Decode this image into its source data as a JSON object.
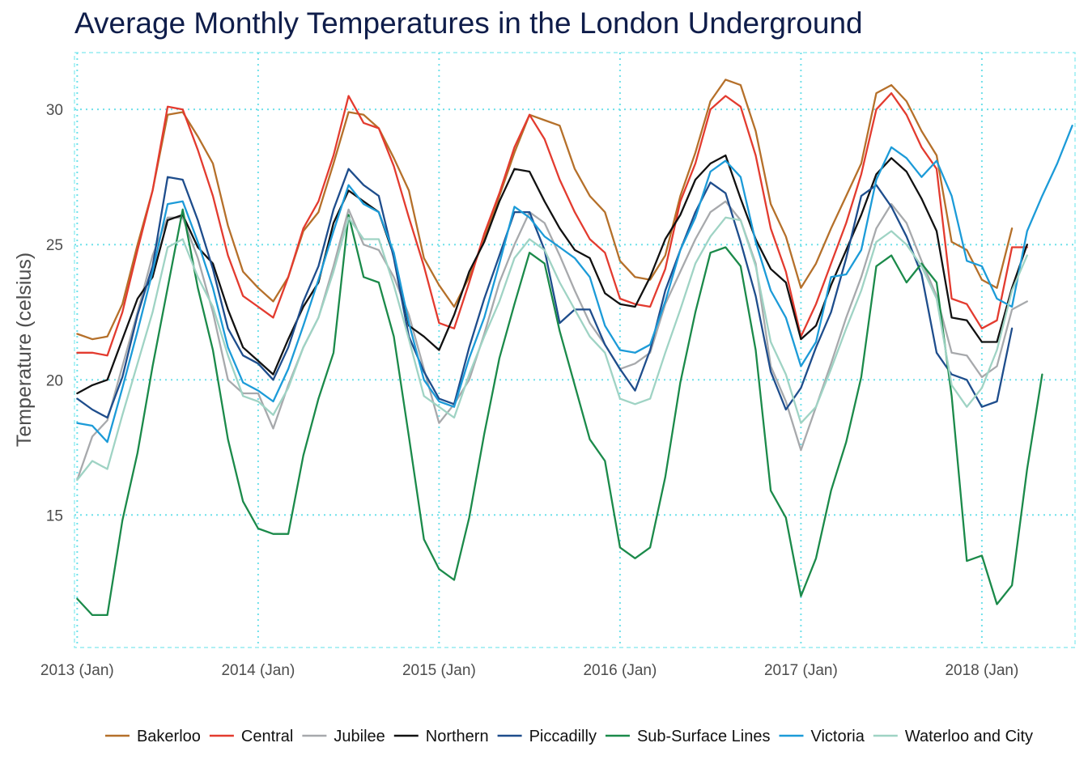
{
  "chart_data": {
    "type": "line",
    "title": "Average Monthly Temperatures in the London Underground",
    "xlabel": "",
    "ylabel": "Temperature (celsius)",
    "x_range": [
      "2013-01",
      "2018-07"
    ],
    "ylim": [
      10.1,
      32.1
    ],
    "x_ticks": [
      {
        "date": "2013-01",
        "label": "2013 (Jan)"
      },
      {
        "date": "2014-01",
        "label": "2014 (Jan)"
      },
      {
        "date": "2015-01",
        "label": "2015 (Jan)"
      },
      {
        "date": "2016-01",
        "label": "2016 (Jan)"
      },
      {
        "date": "2017-01",
        "label": "2017 (Jan)"
      },
      {
        "date": "2018-01",
        "label": "2018 (Jan)"
      }
    ],
    "y_ticks": [
      15,
      20,
      25,
      30
    ],
    "grid": true,
    "legend_position": "bottom",
    "panel_border_color": "#7fe8ee",
    "grid_color": "#6fe0ea",
    "series": [
      {
        "name": "Bakerloo",
        "color": "#b5702a",
        "start": "2013-01",
        "values": [
          21.7,
          21.5,
          21.6,
          22.8,
          25.0,
          27.0,
          29.8,
          29.9,
          29.0,
          28.0,
          25.7,
          24.0,
          23.4,
          22.9,
          23.8,
          25.5,
          26.2,
          28.0,
          29.9,
          29.8,
          29.3,
          28.2,
          27.0,
          24.5,
          23.5,
          22.7,
          23.8,
          25.2,
          26.8,
          28.4,
          29.8,
          29.6,
          29.4,
          27.8,
          26.8,
          26.2,
          24.4,
          23.8,
          23.7,
          24.6,
          26.8,
          28.4,
          30.3,
          31.1,
          30.9,
          29.2,
          26.5,
          25.3,
          23.4,
          24.3,
          25.6,
          26.8,
          28.0,
          30.6,
          30.9,
          30.3,
          29.2,
          28.3,
          25.1,
          24.8,
          23.7,
          23.4,
          25.6
        ]
      },
      {
        "name": "Central",
        "color": "#e33b2f",
        "start": "2013-01",
        "values": [
          21.0,
          21.0,
          20.9,
          22.5,
          24.8,
          27.0,
          30.1,
          30.0,
          28.5,
          26.8,
          24.6,
          23.1,
          22.7,
          22.3,
          23.8,
          25.6,
          26.6,
          28.3,
          30.5,
          29.5,
          29.3,
          27.9,
          26.0,
          24.2,
          22.1,
          21.9,
          23.6,
          25.4,
          26.9,
          28.6,
          29.8,
          28.9,
          27.4,
          26.2,
          25.2,
          24.7,
          23.0,
          22.8,
          22.7,
          24.1,
          26.6,
          28.0,
          30.0,
          30.5,
          30.1,
          28.3,
          25.6,
          24.0,
          21.6,
          22.8,
          24.3,
          25.8,
          27.6,
          30.0,
          30.6,
          29.8,
          28.6,
          27.8,
          23.0,
          22.8,
          21.9,
          22.2,
          24.9,
          24.9
        ]
      },
      {
        "name": "Jubilee",
        "color": "#a7a9ac",
        "start": "2013-01",
        "values": [
          16.3,
          17.9,
          18.5,
          20.5,
          22.5,
          24.6,
          26.0,
          26.0,
          24.5,
          22.5,
          20.0,
          19.5,
          19.5,
          18.2,
          19.8,
          21.2,
          22.3,
          24.2,
          26.3,
          25.0,
          24.8,
          23.8,
          22.4,
          20.4,
          18.4,
          19.1,
          20.0,
          21.7,
          23.6,
          25.0,
          26.2,
          25.8,
          24.6,
          23.3,
          22.1,
          21.3,
          20.4,
          20.6,
          21.0,
          22.8,
          24.0,
          25.2,
          26.2,
          26.6,
          25.9,
          24.3,
          20.5,
          19.2,
          17.4,
          19.0,
          20.6,
          22.3,
          23.8,
          25.6,
          26.5,
          25.8,
          24.4,
          23.1,
          21.0,
          20.9,
          20.1,
          20.5,
          22.6,
          22.9
        ]
      },
      {
        "name": "Northern",
        "color": "#111111",
        "start": "2013-01",
        "values": [
          19.5,
          19.8,
          20.0,
          21.5,
          23.0,
          23.8,
          25.9,
          26.1,
          24.9,
          24.3,
          22.6,
          21.2,
          20.7,
          20.2,
          21.5,
          22.7,
          23.6,
          25.8,
          27.0,
          26.6,
          26.2,
          24.6,
          22.0,
          21.6,
          21.1,
          22.4,
          24.0,
          25.1,
          26.6,
          27.8,
          27.7,
          26.6,
          25.6,
          24.8,
          24.5,
          23.2,
          22.8,
          22.7,
          23.8,
          25.2,
          26.1,
          27.4,
          28.0,
          28.3,
          26.7,
          25.2,
          24.1,
          23.6,
          21.5,
          22.0,
          23.5,
          24.8,
          26.1,
          27.6,
          28.2,
          27.7,
          26.7,
          25.5,
          22.3,
          22.2,
          21.4,
          21.4,
          23.4,
          25.0
        ]
      },
      {
        "name": "Piccadilly",
        "color": "#1e4d8c",
        "start": "2013-01",
        "values": [
          19.3,
          18.9,
          18.6,
          20.1,
          22.4,
          24.2,
          27.5,
          27.4,
          25.9,
          24.1,
          21.9,
          20.9,
          20.6,
          20.0,
          21.2,
          22.9,
          24.2,
          26.3,
          27.8,
          27.2,
          26.8,
          24.5,
          21.6,
          20.3,
          19.3,
          19.1,
          21.2,
          23.0,
          24.6,
          26.2,
          26.2,
          24.8,
          22.1,
          22.6,
          22.6,
          21.3,
          20.4,
          19.6,
          21.1,
          23.3,
          24.8,
          26.2,
          27.3,
          26.9,
          25.1,
          23.1,
          20.3,
          18.9,
          19.7,
          21.2,
          22.5,
          24.5,
          26.8,
          27.2,
          26.4,
          25.3,
          23.9,
          21.0,
          20.2,
          20.0,
          19.0,
          19.2,
          21.9
        ]
      },
      {
        "name": "Sub-Surface Lines",
        "color": "#1b8a4a",
        "start": "2013-01",
        "values": [
          11.9,
          11.3,
          11.3,
          14.8,
          17.3,
          20.5,
          23.4,
          26.3,
          23.4,
          21.1,
          17.8,
          15.5,
          14.5,
          14.3,
          14.3,
          17.2,
          19.3,
          21.0,
          26.1,
          23.8,
          23.6,
          21.6,
          17.9,
          14.1,
          13.0,
          12.6,
          14.9,
          18.0,
          20.8,
          22.8,
          24.7,
          24.3,
          21.8,
          19.8,
          17.8,
          17.0,
          13.8,
          13.4,
          13.8,
          16.4,
          19.9,
          22.5,
          24.7,
          24.9,
          24.2,
          21.1,
          15.9,
          14.9,
          12.0,
          13.4,
          15.9,
          17.7,
          20.1,
          24.2,
          24.6,
          23.6,
          24.3,
          23.6,
          19.4,
          13.3,
          13.5,
          11.7,
          12.4,
          16.7,
          20.2
        ]
      },
      {
        "name": "Victoria",
        "color": "#1c9bd8",
        "start": "2013-01",
        "values": [
          18.4,
          18.3,
          17.7,
          19.7,
          21.8,
          24.0,
          26.5,
          26.6,
          25.1,
          23.4,
          21.2,
          19.9,
          19.6,
          19.2,
          20.4,
          22.0,
          23.7,
          25.5,
          27.2,
          26.5,
          26.2,
          24.7,
          22.1,
          20.0,
          19.2,
          19.0,
          20.8,
          22.3,
          24.3,
          26.4,
          26.0,
          25.3,
          24.9,
          24.5,
          23.8,
          22.0,
          21.1,
          21.0,
          21.3,
          22.9,
          24.8,
          26.0,
          27.7,
          28.1,
          27.5,
          25.1,
          23.3,
          22.3,
          20.5,
          21.4,
          23.8,
          23.9,
          24.8,
          27.4,
          28.6,
          28.2,
          27.5,
          28.1,
          26.8,
          24.4,
          24.2,
          23.0,
          22.7,
          25.5,
          26.8,
          28.0,
          29.4
        ]
      },
      {
        "name": "Waterloo and City",
        "color": "#9fd3c4",
        "start": "2013-01",
        "values": [
          16.3,
          17.0,
          16.7,
          18.7,
          20.6,
          22.5,
          24.9,
          25.2,
          23.8,
          22.7,
          20.9,
          19.4,
          19.2,
          18.7,
          19.7,
          21.2,
          22.3,
          24.0,
          26.0,
          25.2,
          25.2,
          23.5,
          21.5,
          19.4,
          19.0,
          18.6,
          20.2,
          21.6,
          22.9,
          24.5,
          25.2,
          24.8,
          23.6,
          22.6,
          21.6,
          21.0,
          19.3,
          19.1,
          19.3,
          21.0,
          22.6,
          24.3,
          25.3,
          26.0,
          25.9,
          24.2,
          21.4,
          20.2,
          18.4,
          19.0,
          20.4,
          21.9,
          23.3,
          25.1,
          25.5,
          25.0,
          24.2,
          23.0,
          19.8,
          19.0,
          19.7,
          21.1,
          23.3,
          24.6
        ]
      }
    ]
  }
}
